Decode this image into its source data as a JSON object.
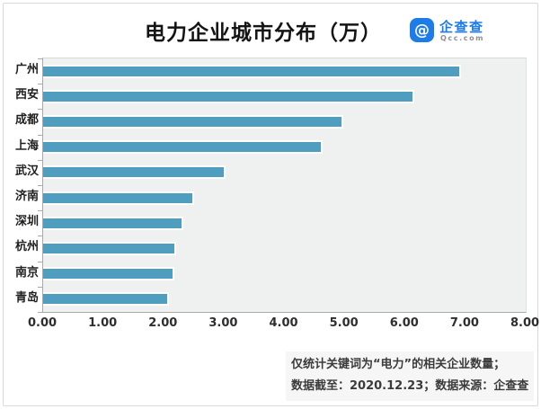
{
  "title": "电力企业城市分布（万）",
  "logo": {
    "icon_glyph": "@",
    "name": "企查查",
    "domain": "Qcc.com"
  },
  "footer": {
    "line1": "仅统计关键词为“电力”的相关企业数量；",
    "line2": "数据截至：2020.12.23；数据来源：企查查"
  },
  "colors": {
    "bar": "#4f9dbf",
    "logo_blue": "#1e7ce8",
    "plot_background": "#eff1f1",
    "title_text": "#141414",
    "footer_text": "#3b3b3b"
  },
  "chart_data": {
    "type": "bar",
    "orientation": "horizontal",
    "title": "电力企业城市分布（万）",
    "categories": [
      "广州",
      "西安",
      "成都",
      "上海",
      "武汉",
      "济南",
      "深圳",
      "杭州",
      "南京",
      "青岛"
    ],
    "values": [
      6.93,
      6.15,
      4.97,
      4.63,
      3.03,
      2.5,
      2.32,
      2.2,
      2.18,
      2.08
    ],
    "unit": "万",
    "xlim": [
      0,
      8
    ],
    "x_ticks": [
      "0.00",
      "1.00",
      "2.00",
      "3.00",
      "4.00",
      "5.00",
      "6.00",
      "7.00",
      "8.00"
    ],
    "xlabel": "",
    "ylabel": "",
    "grid": false,
    "legend": false
  }
}
